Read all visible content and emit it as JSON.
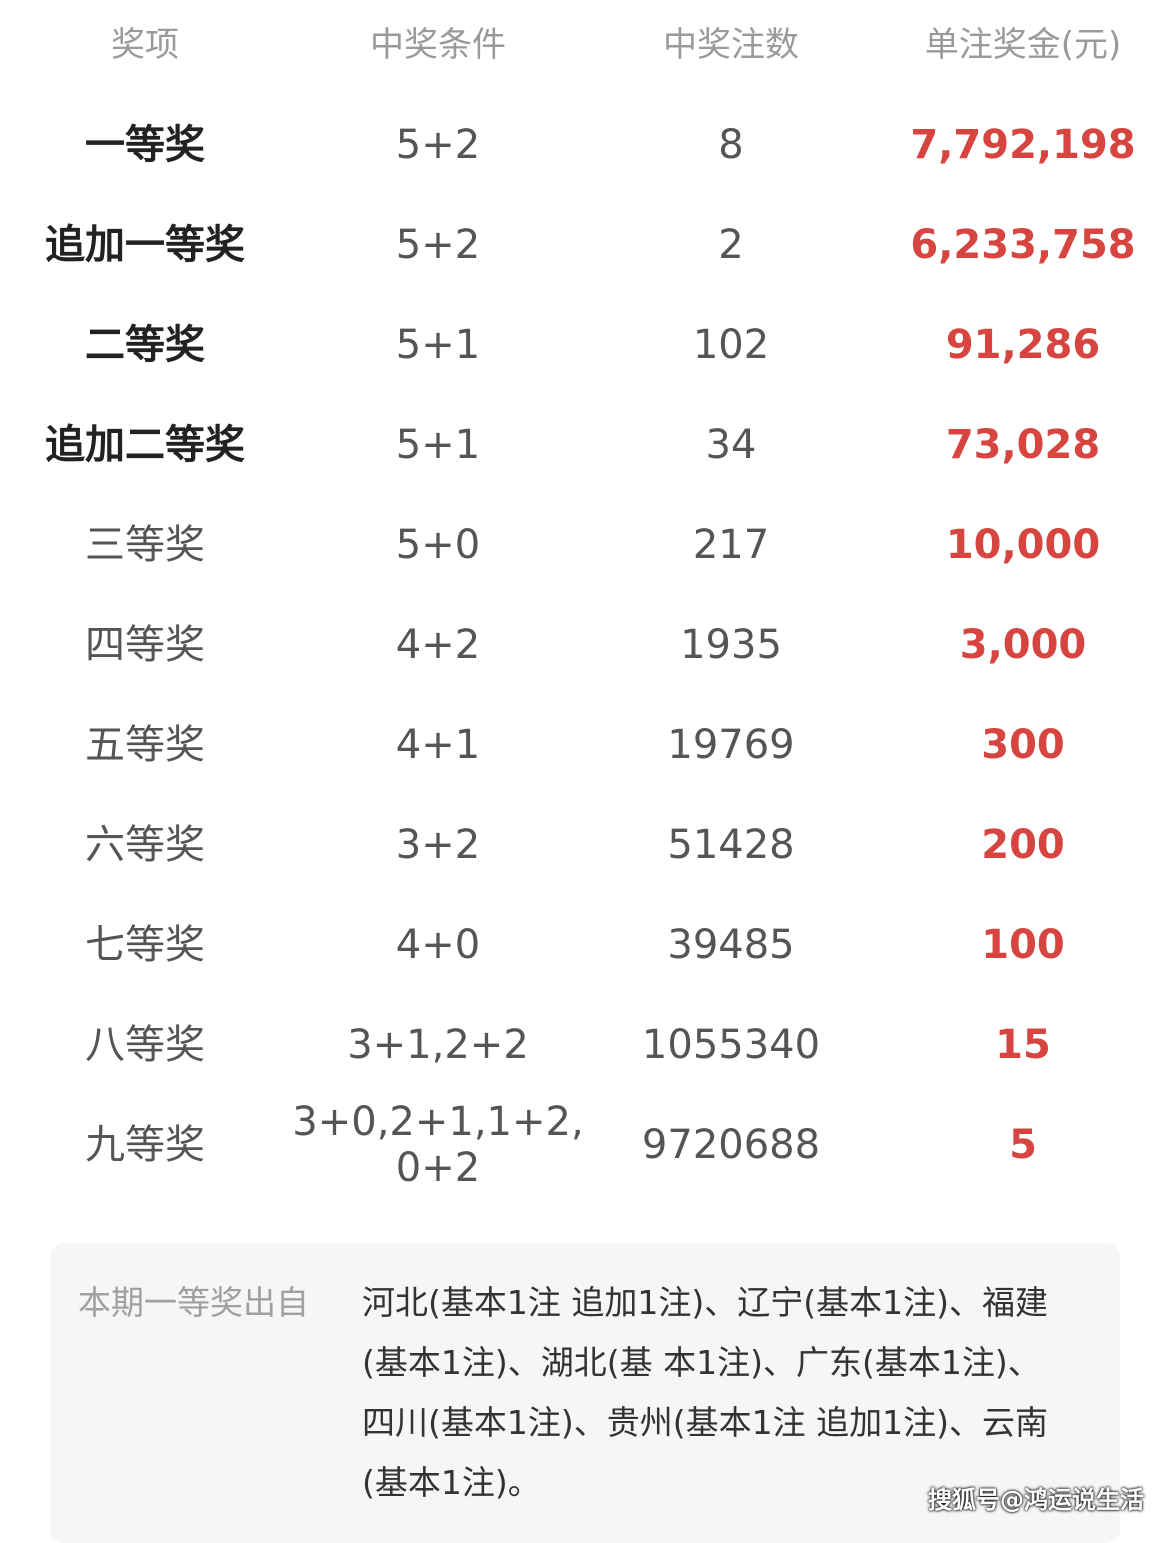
{
  "header": {
    "prize": "奖项",
    "condition": "中奖条件",
    "count": "中奖注数",
    "amount": "单注奖金(元)"
  },
  "rows": [
    {
      "prize": "一等奖",
      "condition": "5+2",
      "count": "8",
      "amount": "7,792,198"
    },
    {
      "prize": "追加一等奖",
      "condition": "5+2",
      "count": "2",
      "amount": "6,233,758"
    },
    {
      "prize": "二等奖",
      "condition": "5+1",
      "count": "102",
      "amount": "91,286"
    },
    {
      "prize": "追加二等奖",
      "condition": "5+1",
      "count": "34",
      "amount": "73,028"
    },
    {
      "prize": "三等奖",
      "condition": "5+0",
      "count": "217",
      "amount": "10,000"
    },
    {
      "prize": "四等奖",
      "condition": "4+2",
      "count": "1935",
      "amount": "3,000"
    },
    {
      "prize": "五等奖",
      "condition": "4+1",
      "count": "19769",
      "amount": "300"
    },
    {
      "prize": "六等奖",
      "condition": "3+2",
      "count": "51428",
      "amount": "200"
    },
    {
      "prize": "七等奖",
      "condition": "4+0",
      "count": "39485",
      "amount": "100"
    },
    {
      "prize": "八等奖",
      "condition": "3+1,2+2",
      "count": "1055340",
      "amount": "15"
    },
    {
      "prize": "九等奖",
      "condition": "3+0,2+1,1+2,\n0+2",
      "count": "9720688",
      "amount": "5"
    }
  ],
  "note": {
    "label": "本期一等奖出自",
    "text": "河北(基本1注 追加1注)、辽宁(基本1注)、福建(基本1注)、湖北(基 本1注)、广东(基本1注)、四川(基本1注)、贵州(基本1注 追加1注)、云南(基本1注)。"
  },
  "watermark": "搜狐号@鸿运说生活",
  "colors": {
    "amount": "#d6453f"
  }
}
